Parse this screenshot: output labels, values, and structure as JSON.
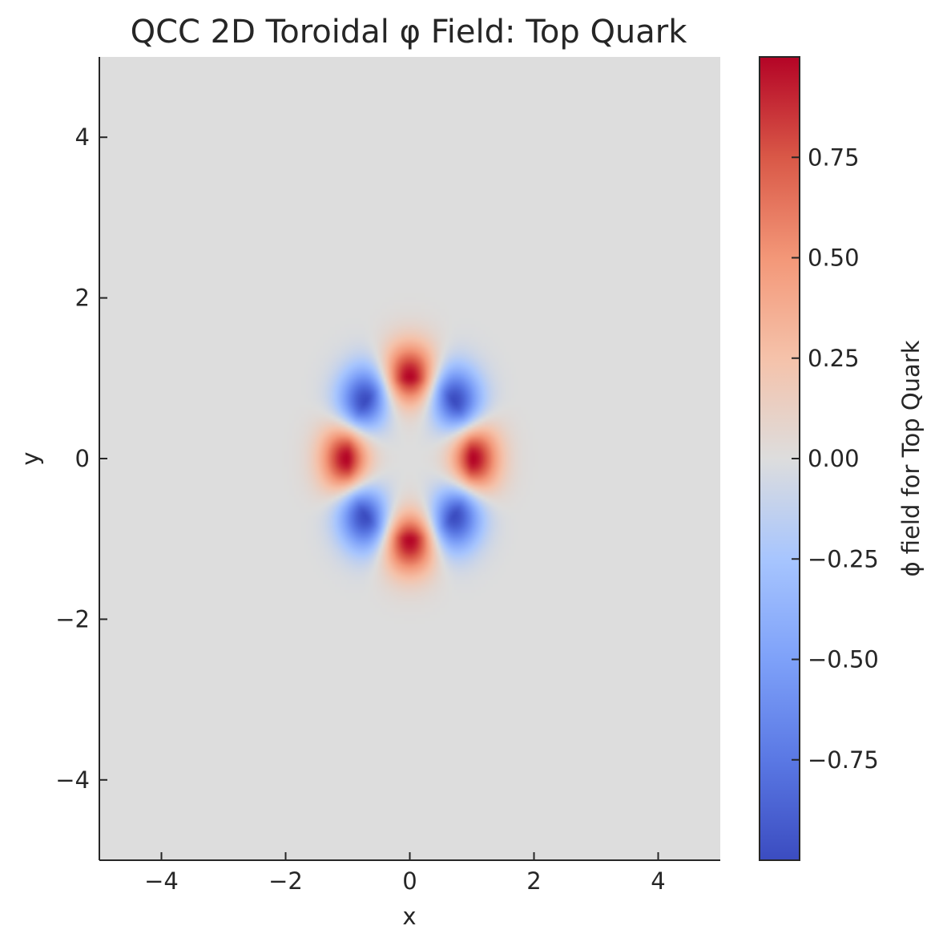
{
  "chart_data": {
    "type": "heatmap",
    "title": "QCC 2D Toroidal φ Field: Top Quark",
    "xlabel": "x",
    "ylabel": "y",
    "xlim": [
      -5,
      5
    ],
    "ylim": [
      -5,
      5
    ],
    "xticks": [
      -4,
      -2,
      0,
      2,
      4
    ],
    "yticks": [
      -4,
      -2,
      0,
      2,
      4
    ],
    "xtick_labels": [
      "−4",
      "−2",
      "0",
      "2",
      "4"
    ],
    "ytick_labels": [
      "−4",
      "−2",
      "0",
      "2",
      "4"
    ],
    "colormap": "coolwarm",
    "field_extrema": [
      {
        "x": 0,
        "y": 1,
        "value": 1.0
      },
      {
        "x": 0,
        "y": -1,
        "value": 1.0
      },
      {
        "x": 1,
        "y": 0,
        "value": 1.0
      },
      {
        "x": -1,
        "y": 0,
        "value": 1.0
      },
      {
        "x": 0.71,
        "y": 0.71,
        "value": -1.0
      },
      {
        "x": -0.71,
        "y": 0.71,
        "value": -1.0
      },
      {
        "x": 0.71,
        "y": -0.71,
        "value": -1.0
      },
      {
        "x": -0.71,
        "y": -0.71,
        "value": -1.0
      }
    ],
    "colorbar": {
      "label": "ϕ field for Top Quark",
      "range": [
        -1,
        1
      ],
      "ticks": [
        -0.75,
        -0.5,
        -0.25,
        0,
        0.25,
        0.5,
        0.75
      ],
      "tick_labels": [
        "−0.75",
        "−0.50",
        "−0.25",
        "0.00",
        "0.25",
        "0.50",
        "0.75"
      ]
    },
    "grid": false
  }
}
